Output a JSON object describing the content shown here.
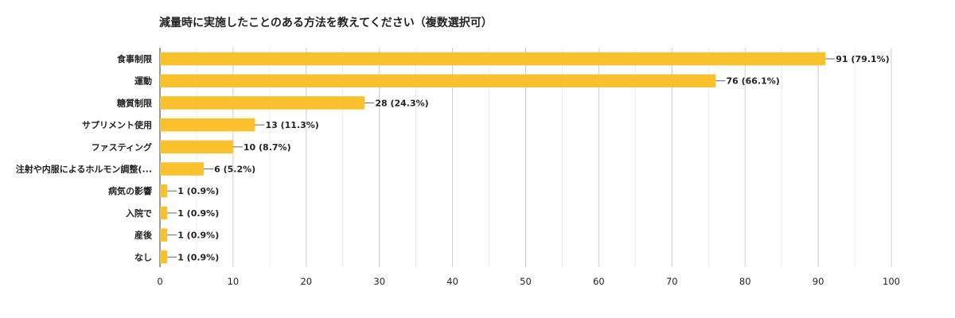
{
  "chart_data": {
    "type": "bar",
    "orientation": "horizontal",
    "title": "減量時に実施したことのある方法を教えてください（複数選択可）",
    "categories": [
      "食事制限",
      "運動",
      "糖質制限",
      "サプリメント使用",
      "ファスティング",
      "注射や内服によるホルモン調整(...",
      "病気の影響",
      "入院で",
      "産後",
      "なし"
    ],
    "values": [
      91,
      76,
      28,
      13,
      10,
      6,
      1,
      1,
      1,
      1
    ],
    "value_labels": [
      "91 (79.1%)",
      "76 (66.1%)",
      "28 (24.3%)",
      "13 (11.3%)",
      "10 (8.7%)",
      "6 (5.2%)",
      "1 (0.9%)",
      "1 (0.9%)",
      "1 (0.9%)",
      "1 (0.9%)"
    ],
    "xlim": [
      0,
      100
    ],
    "x_ticks": [
      "0",
      "10",
      "20",
      "30",
      "40",
      "50",
      "60",
      "70",
      "80",
      "90",
      "100"
    ],
    "grid": true,
    "legend": "none",
    "bar_color": "#f8c12d"
  }
}
